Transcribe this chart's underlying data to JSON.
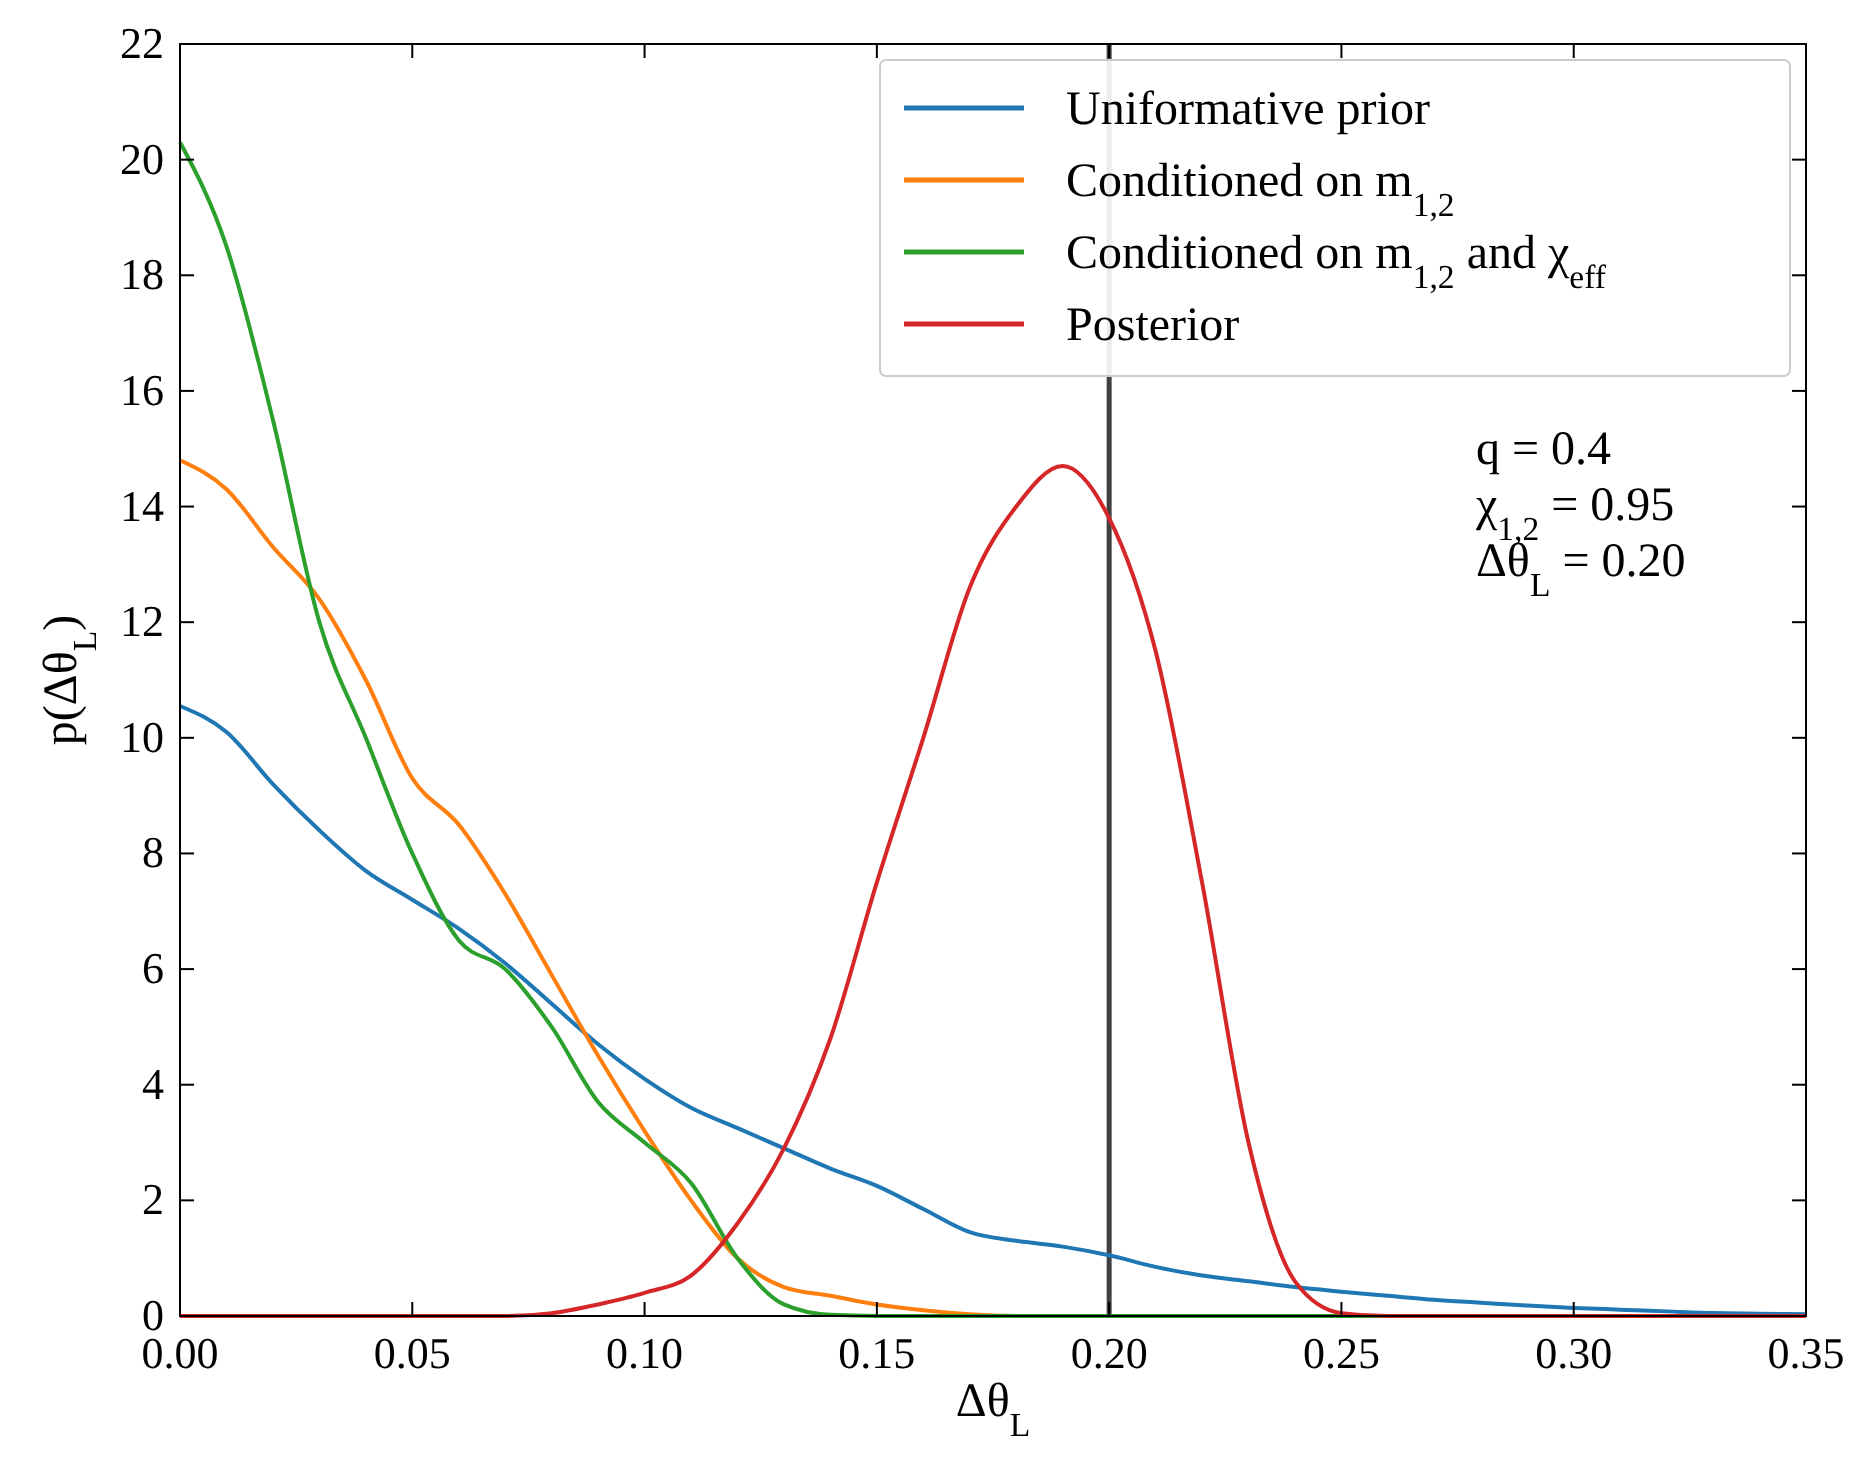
{
  "chart_data": {
    "type": "line",
    "xlabel": "Δθ$_{L}$",
    "ylabel": "p(Δθ$_{L}$)",
    "x": [
      0,
      0.01,
      0.02,
      0.03,
      0.04,
      0.05,
      0.06,
      0.07,
      0.08,
      0.09,
      0.1,
      0.11,
      0.12,
      0.13,
      0.14,
      0.15,
      0.16,
      0.17,
      0.18,
      0.19,
      0.2,
      0.21,
      0.22,
      0.23,
      0.24,
      0.25,
      0.26,
      0.27,
      0.28,
      0.29,
      0.3,
      0.31,
      0.32,
      0.33,
      0.34,
      0.35
    ],
    "series": [
      {
        "name": "Uniformative prior",
        "color": "#1f77b4",
        "values": [
          10.55,
          10.1,
          9.2,
          8.4,
          7.7,
          7.2,
          6.7,
          6.1,
          5.4,
          4.7,
          4.1,
          3.6,
          3.25,
          2.9,
          2.55,
          2.25,
          1.85,
          1.45,
          1.3,
          1.2,
          1.05,
          0.85,
          0.7,
          0.6,
          0.5,
          0.42,
          0.35,
          0.28,
          0.23,
          0.18,
          0.14,
          0.11,
          0.08,
          0.05,
          0.04,
          0.03
        ]
      },
      {
        "name": "Conditioned on m$_{1,2}$",
        "color": "#ff7f0e",
        "values": [
          14.8,
          14.3,
          13.3,
          12.4,
          11.0,
          9.3,
          8.5,
          7.3,
          5.9,
          4.5,
          3.2,
          2.0,
          1.0,
          0.5,
          0.35,
          0.2,
          0.1,
          0.03,
          0,
          0,
          null,
          null,
          null,
          null,
          null,
          null,
          null,
          null,
          null,
          null,
          null,
          null,
          null,
          null,
          null,
          null
        ]
      },
      {
        "name": "Conditioned on m$_{1,2}$ and χ$_{eff}$",
        "color": "#2ca02c",
        "values": [
          20.3,
          18.5,
          15.5,
          12.0,
          10.0,
          8.0,
          6.5,
          6.0,
          5.0,
          3.7,
          3.0,
          2.3,
          1.0,
          0.2,
          0.02,
          0,
          0,
          0,
          0,
          0,
          0,
          0,
          0,
          0,
          0,
          0,
          0,
          0,
          null,
          null,
          null,
          null,
          null,
          null,
          null,
          null
        ]
      },
      {
        "name": "Posterior",
        "color": "#d62728",
        "values": [
          0,
          0,
          0,
          0,
          0,
          0,
          0,
          0,
          0.05,
          0.2,
          0.4,
          0.7,
          1.6,
          2.9,
          4.8,
          7.5,
          10.0,
          12.6,
          14.0,
          14.7,
          13.8,
          11.5,
          7.5,
          3.0,
          0.6,
          0.05,
          0,
          0,
          0,
          0,
          0,
          0,
          0,
          0,
          0,
          0
        ]
      }
    ],
    "xlim": [
      0,
      0.35
    ],
    "xticks": [
      {
        "value": 0,
        "label": "0.00"
      },
      {
        "value": 0.05,
        "label": "0.05"
      },
      {
        "value": 0.1,
        "label": "0.10"
      },
      {
        "value": 0.15,
        "label": "0.15"
      },
      {
        "value": 0.2,
        "label": "0.20"
      },
      {
        "value": 0.25,
        "label": "0.25"
      },
      {
        "value": 0.3,
        "label": "0.30"
      },
      {
        "value": 0.35,
        "label": "0.35"
      }
    ],
    "ylim": [
      0,
      22
    ],
    "yticks": [
      0,
      2,
      4,
      6,
      8,
      10,
      12,
      14,
      16,
      18,
      20,
      22
    ],
    "ref_lines": [
      {
        "axis": "x",
        "value": 0.2,
        "color": "#404040"
      }
    ],
    "annotations": [
      "q = 0.4",
      "χ$_{1,2}$ = 0.95",
      "Δθ$_{L}$ = 0.20"
    ],
    "legend": "top right",
    "grid": false,
    "marker": "none",
    "line_style": "solid"
  }
}
